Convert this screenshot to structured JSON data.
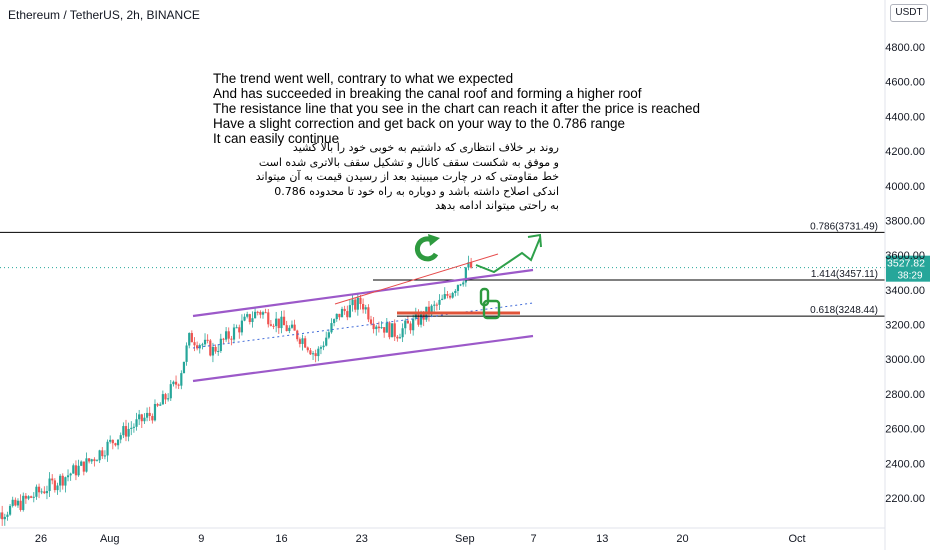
{
  "header": {
    "title": "Ethereum / TetherUS, 2h, BINANCE",
    "currency": "USDT"
  },
  "annotation_en": [
    "The trend went well, contrary to what we expected",
    "And has succeeded in breaking the canal roof and forming a higher roof",
    "The resistance line that you see in the chart can reach it after the price is reached",
    "Have a slight correction and get back on your way to the 0.786 range",
    "It can easily continue"
  ],
  "annotation_fa": [
    "روند بر خلاف انتظاری که داشتیم به خوبی خود را بالا کشید",
    "و موفق به شکست سقف کانال و تشکیل سقف بالاتری شده است",
    "خط مقاومتی که در چارت میبینید بعد از رسیدن قیمت به آن میتواند",
    "اندکی اصلاح داشته باشد و دوباره به راه خود تا محدوده 0.786",
    "به راحتی میتواند ادامه بدهد"
  ],
  "colors": {
    "up": "#26a69a",
    "down": "#ef5350",
    "channel": "#9c59c9",
    "fib_line": "#000000",
    "price_label": "#26a69a",
    "resistance": "#e0543a",
    "arrow": "#2e9a3f"
  },
  "chart_data": {
    "type": "candlestick",
    "symbol": "Ethereum / TetherUS",
    "interval": "2h",
    "exchange": "BINANCE",
    "y_axis_ticks": [
      "4800.00",
      "4600.00",
      "4400.00",
      "4200.00",
      "4000.00",
      "3800.00",
      "3600.00",
      "3400.00",
      "3200.00",
      "3000.00",
      "2800.00",
      "2600.00",
      "2400.00",
      "2200.00"
    ],
    "x_axis_ticks": [
      "26",
      "Aug",
      "9",
      "16",
      "23",
      "Sep",
      "7",
      "13",
      "20",
      "Oct"
    ],
    "ylim": [
      2060,
      5000
    ],
    "last_price": "3527.82",
    "countdown": "38:29",
    "fib_levels": [
      {
        "label": "0.786(3731.49)",
        "value": 3731.49
      },
      {
        "label": "1.414(3457.11)",
        "value": 3457.11
      },
      {
        "label": "0.618(3248.44)",
        "value": 3248.44
      }
    ],
    "close_path": [
      {
        "date": "Jul 21",
        "price": 2070
      },
      {
        "date": "Jul 24",
        "price": 2160
      },
      {
        "date": "Jul 27",
        "price": 2280
      },
      {
        "date": "Jul 30",
        "price": 2400
      },
      {
        "date": "Aug 2",
        "price": 2570
      },
      {
        "date": "Aug 5",
        "price": 2700
      },
      {
        "date": "Aug 7",
        "price": 2880
      },
      {
        "date": "Aug 8",
        "price": 3130
      },
      {
        "date": "Aug 10",
        "price": 3050
      },
      {
        "date": "Aug 12",
        "price": 3170
      },
      {
        "date": "Aug 14",
        "price": 3280
      },
      {
        "date": "Aug 16",
        "price": 3200
      },
      {
        "date": "Aug 18",
        "price": 3110
      },
      {
        "date": "Aug 19",
        "price": 3020
      },
      {
        "date": "Aug 21",
        "price": 3260
      },
      {
        "date": "Aug 23",
        "price": 3330
      },
      {
        "date": "Aug 24",
        "price": 3220
      },
      {
        "date": "Aug 26",
        "price": 3150
      },
      {
        "date": "Aug 28",
        "price": 3230
      },
      {
        "date": "Aug 30",
        "price": 3330
      },
      {
        "date": "Sep 1",
        "price": 3490
      },
      {
        "date": "Sep 1",
        "price": 3528
      }
    ]
  }
}
